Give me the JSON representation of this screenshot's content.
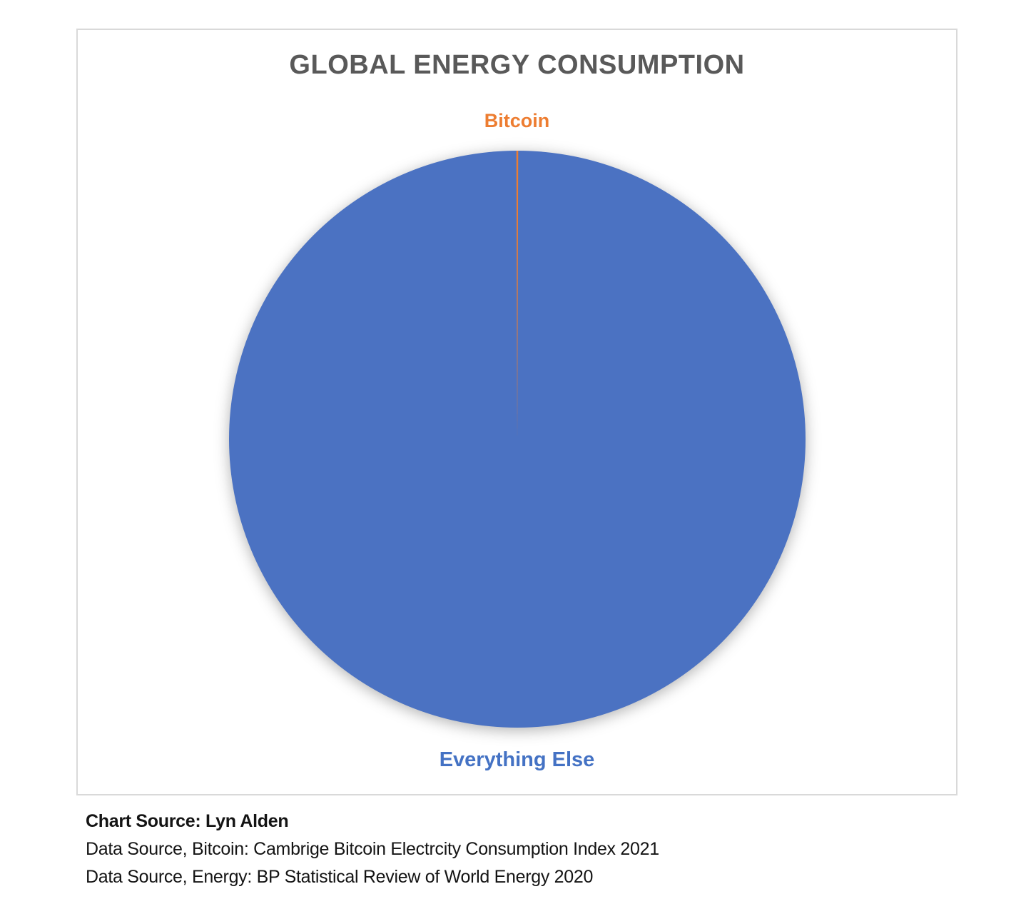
{
  "chart": {
    "title": "GLOBAL ENERGY CONSUMPTION",
    "title_color": "#595959",
    "frame_border_color": "#D9D9D9",
    "background": "#FFFFFF"
  },
  "chart_data": {
    "type": "pie",
    "title": "GLOBAL ENERGY CONSUMPTION",
    "slices": [
      {
        "label": "Bitcoin",
        "value": 0.1,
        "color": "#ED7D31",
        "label_position": "top-outside"
      },
      {
        "label": "Everything Else",
        "value": 99.9,
        "color": "#4B72C2",
        "label_position": "bottom-outside"
      }
    ],
    "unit": "percent",
    "start_angle_deg": 0,
    "legend": "none",
    "data_labels": "category-names-outside"
  },
  "footer": {
    "line1": "Chart Source: Lyn Alden",
    "line2": "Data Source, Bitcoin: Cambrige Bitcoin Electrcity Consumption Index 2021",
    "line3": "Data Source, Energy: BP Statistical Review of World Energy 2020"
  }
}
